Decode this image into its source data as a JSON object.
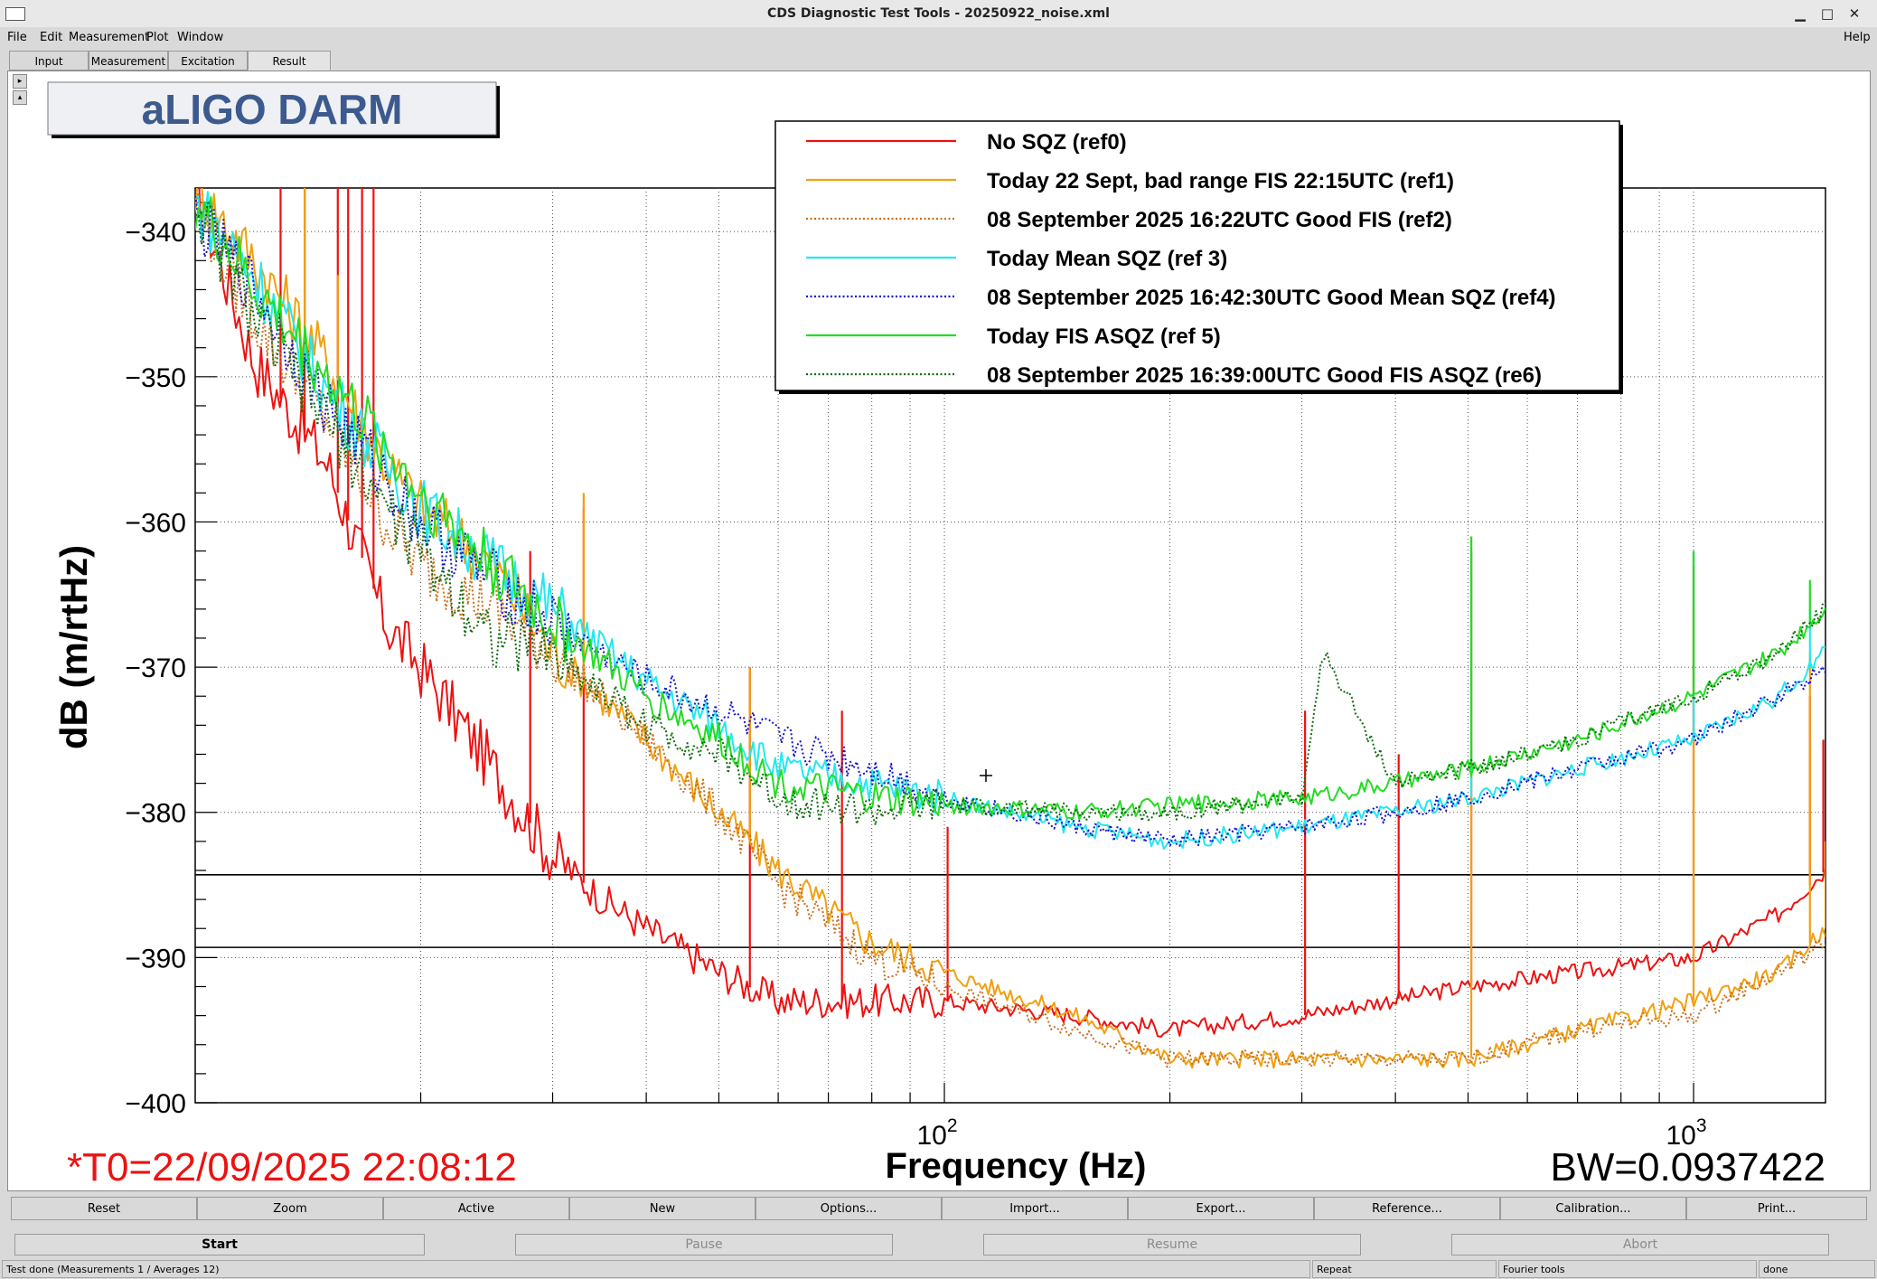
{
  "window": {
    "title": "CDS Diagnostic Test Tools - 20250922_noise.xml",
    "controls": {
      "minimize": "▁",
      "maximize": "□",
      "close": "✕"
    }
  },
  "menu": {
    "items": [
      "File",
      "Edit",
      "Measurement",
      "Plot",
      "Window"
    ],
    "help": "Help"
  },
  "tabs": [
    {
      "label": "Input",
      "active": false
    },
    {
      "label": "Measurement",
      "active": false
    },
    {
      "label": "Excitation",
      "active": false
    },
    {
      "label": "Result",
      "active": true
    }
  ],
  "plot_title": "aLIGO DARM",
  "t0_text": "*T0=22/09/2025 22:08:12",
  "bw_text": "BW=0.0937422",
  "colors": {
    "ref0": "#ee1111",
    "ref1": "#f0a010",
    "ref2": "#c87020",
    "ref3": "#22e8f0",
    "ref4": "#1515cc",
    "ref5": "#22dd22",
    "ref6": "#106b10",
    "t0": "#ee1111"
  },
  "chart_data": {
    "type": "line",
    "title": "aLIGO DARM",
    "xlabel": "Frequency (Hz)",
    "ylabel": "dB (m/rtHz)",
    "xscale": "log",
    "xlim": [
      10,
      1500
    ],
    "ylim": [
      -400,
      -337
    ],
    "yticks": [
      -340,
      -350,
      -360,
      -370,
      -380,
      -390,
      -400
    ],
    "ytick_labels": [
      "−340",
      "−350",
      "−360",
      "−370",
      "−380",
      "−390",
      "−400"
    ],
    "xtick_labels": [
      {
        "value": 100,
        "base": "10",
        "exp": "2"
      },
      {
        "value": 1000,
        "base": "10",
        "exp": "3"
      }
    ],
    "grid": true,
    "legend_position": "top-right",
    "horizontal_lines": [
      -384.3,
      -389.3
    ],
    "series": [
      {
        "name": "No SQZ (ref0)",
        "key": "ref0",
        "style": "solid",
        "points": [
          [
            10,
            -337
          ],
          [
            12,
            -349
          ],
          [
            15,
            -356
          ],
          [
            18,
            -367
          ],
          [
            20,
            -370
          ],
          [
            25,
            -377
          ],
          [
            30,
            -383
          ],
          [
            35,
            -386
          ],
          [
            40,
            -388
          ],
          [
            50,
            -391
          ],
          [
            60,
            -393
          ],
          [
            80,
            -393
          ],
          [
            100,
            -393
          ],
          [
            150,
            -394
          ],
          [
            200,
            -395
          ],
          [
            300,
            -394
          ],
          [
            500,
            -392
          ],
          [
            700,
            -391
          ],
          [
            1000,
            -390
          ],
          [
            1300,
            -387
          ],
          [
            1500,
            -384
          ]
        ],
        "spikes": [
          [
            13,
            -337
          ],
          [
            14,
            -337
          ],
          [
            15.5,
            -337
          ],
          [
            16,
            -337
          ],
          [
            16.7,
            -337
          ],
          [
            17.3,
            -337
          ],
          [
            28,
            -362
          ],
          [
            33,
            -359
          ],
          [
            55,
            -370
          ],
          [
            73,
            -373
          ],
          [
            101,
            -381
          ],
          [
            303,
            -373
          ],
          [
            404,
            -376
          ],
          [
            505,
            -362
          ],
          [
            1000,
            -363
          ],
          [
            1430,
            -372
          ],
          [
            1490,
            -375
          ]
        ]
      },
      {
        "name": "Today 22 Sept, bad range FIS 22:15UTC  (ref1)",
        "key": "ref1",
        "style": "solid",
        "points": [
          [
            10,
            -337
          ],
          [
            12,
            -342
          ],
          [
            15,
            -349
          ],
          [
            18,
            -356
          ],
          [
            20,
            -359
          ],
          [
            25,
            -363
          ],
          [
            30,
            -369
          ],
          [
            40,
            -375
          ],
          [
            50,
            -380
          ],
          [
            60,
            -384
          ],
          [
            80,
            -389
          ],
          [
            100,
            -391
          ],
          [
            150,
            -394
          ],
          [
            200,
            -397
          ],
          [
            300,
            -397
          ],
          [
            500,
            -397
          ],
          [
            700,
            -395
          ],
          [
            1000,
            -393
          ],
          [
            1300,
            -391
          ],
          [
            1500,
            -388
          ]
        ],
        "spikes": [
          [
            14,
            -337
          ],
          [
            15.5,
            -343
          ],
          [
            33,
            -358
          ],
          [
            55,
            -370
          ],
          [
            505,
            -361
          ],
          [
            1000,
            -366
          ],
          [
            1430,
            -369
          ],
          [
            1500,
            -382
          ]
        ]
      },
      {
        "name": "08 September 2025 16:22UTC Good FIS (ref2)",
        "key": "ref2",
        "style": "dotted",
        "points": [
          [
            10,
            -338
          ],
          [
            12,
            -346
          ],
          [
            15,
            -353
          ],
          [
            18,
            -360
          ],
          [
            20,
            -363
          ],
          [
            25,
            -366
          ],
          [
            30,
            -369
          ],
          [
            40,
            -375
          ],
          [
            50,
            -380
          ],
          [
            60,
            -385
          ],
          [
            80,
            -390
          ],
          [
            100,
            -392
          ],
          [
            150,
            -395
          ],
          [
            200,
            -397
          ],
          [
            300,
            -397
          ],
          [
            500,
            -397
          ],
          [
            700,
            -395
          ],
          [
            1000,
            -394
          ],
          [
            1300,
            -391
          ],
          [
            1500,
            -389
          ]
        ]
      },
      {
        "name": "Today Mean SQZ (ref 3)",
        "key": "ref3",
        "style": "solid",
        "points": [
          [
            10,
            -338
          ],
          [
            12,
            -343
          ],
          [
            15,
            -351
          ],
          [
            18,
            -356
          ],
          [
            20,
            -359
          ],
          [
            25,
            -363
          ],
          [
            30,
            -366
          ],
          [
            40,
            -371
          ],
          [
            50,
            -374
          ],
          [
            60,
            -377
          ],
          [
            80,
            -378
          ],
          [
            100,
            -379
          ],
          [
            150,
            -381
          ],
          [
            200,
            -382
          ],
          [
            300,
            -381
          ],
          [
            400,
            -380
          ],
          [
            500,
            -379
          ],
          [
            700,
            -377
          ],
          [
            1000,
            -375
          ],
          [
            1300,
            -372
          ],
          [
            1500,
            -369
          ]
        ],
        "spikes": [
          [
            505,
            -362
          ],
          [
            1000,
            -362
          ],
          [
            1430,
            -366
          ]
        ]
      },
      {
        "name": "08 September 2025 16:42:30UTC Good Mean SQZ (ref4)",
        "key": "ref4",
        "style": "dotted",
        "points": [
          [
            10,
            -339
          ],
          [
            12,
            -344
          ],
          [
            15,
            -352
          ],
          [
            18,
            -357
          ],
          [
            20,
            -360
          ],
          [
            25,
            -364
          ],
          [
            30,
            -367
          ],
          [
            40,
            -371
          ],
          [
            50,
            -373
          ],
          [
            60,
            -375
          ],
          [
            80,
            -377
          ],
          [
            100,
            -379
          ],
          [
            150,
            -381
          ],
          [
            200,
            -382
          ],
          [
            300,
            -381
          ],
          [
            400,
            -380
          ],
          [
            500,
            -379
          ],
          [
            700,
            -377
          ],
          [
            1000,
            -375
          ],
          [
            1300,
            -372
          ],
          [
            1500,
            -370
          ]
        ]
      },
      {
        "name": "Today FIS ASQZ (ref 5)",
        "key": "ref5",
        "style": "solid",
        "points": [
          [
            10,
            -338
          ],
          [
            12,
            -344
          ],
          [
            15,
            -350
          ],
          [
            18,
            -355
          ],
          [
            20,
            -358
          ],
          [
            25,
            -363
          ],
          [
            30,
            -367
          ],
          [
            40,
            -372
          ],
          [
            50,
            -375
          ],
          [
            60,
            -378
          ],
          [
            80,
            -379
          ],
          [
            100,
            -379.5
          ],
          [
            150,
            -380
          ],
          [
            200,
            -379.5
          ],
          [
            300,
            -379
          ],
          [
            400,
            -378
          ],
          [
            500,
            -377
          ],
          [
            700,
            -375
          ],
          [
            1000,
            -372
          ],
          [
            1300,
            -369
          ],
          [
            1500,
            -366
          ]
        ],
        "spikes": [
          [
            505,
            -361
          ],
          [
            1000,
            -362
          ],
          [
            1430,
            -364
          ]
        ]
      },
      {
        "name": "08 September 2025 16:39:00UTC Good FIS ASQZ (re6)",
        "key": "ref6",
        "style": "dotted",
        "points": [
          [
            10,
            -338
          ],
          [
            12,
            -346
          ],
          [
            15,
            -353
          ],
          [
            18,
            -359
          ],
          [
            20,
            -362
          ],
          [
            25,
            -368
          ],
          [
            30,
            -369
          ],
          [
            40,
            -374
          ],
          [
            50,
            -376
          ],
          [
            60,
            -379
          ],
          [
            80,
            -380
          ],
          [
            100,
            -379.5
          ],
          [
            150,
            -380
          ],
          [
            200,
            -380
          ],
          [
            300,
            -379
          ],
          [
            320,
            -369
          ],
          [
            400,
            -378
          ],
          [
            500,
            -377
          ],
          [
            700,
            -375
          ],
          [
            1000,
            -372
          ],
          [
            1300,
            -369
          ],
          [
            1500,
            -366
          ]
        ]
      }
    ]
  },
  "toolbar": [
    "Reset",
    "Zoom",
    "Active",
    "New",
    "Options...",
    "Import...",
    "Export...",
    "Reference...",
    "Calibration...",
    "Print..."
  ],
  "controls": [
    {
      "label": "Start",
      "enabled": true
    },
    {
      "label": "Pause",
      "enabled": false
    },
    {
      "label": "Resume",
      "enabled": false
    },
    {
      "label": "Abort",
      "enabled": false
    }
  ],
  "status": {
    "left": "Test done (Measurements 1 / Averages 12)",
    "repeat": "Repeat",
    "tool": "Fourier tools",
    "state": "done"
  }
}
